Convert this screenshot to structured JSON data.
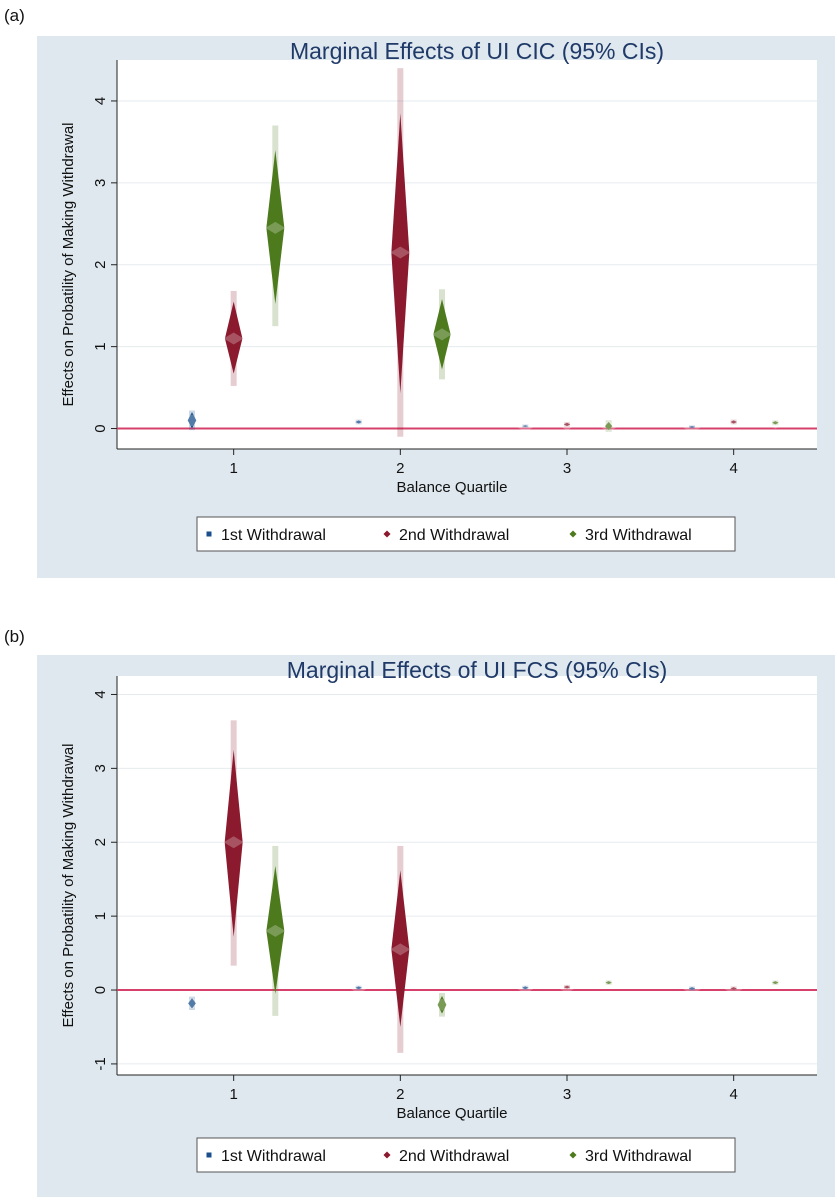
{
  "chart_data": [
    {
      "type": "scatter",
      "panel_label": "(a)",
      "title": "Marginal Effects of UI CIC (95% CIs)",
      "xlabel": "Balance Quartile",
      "ylabel": "Effects on Probatility of Making Withdrawal",
      "xlim": [
        0.3,
        4.5
      ],
      "ylim": [
        -0.25,
        4.5
      ],
      "xticks": [
        1,
        2,
        3,
        4
      ],
      "yticks": [
        0,
        1,
        2,
        3,
        4
      ],
      "reference_line_y": 0,
      "grid": true,
      "legend_position": "bottom",
      "series": [
        {
          "name": "1st Withdrawal",
          "color": "#1a4f8b",
          "points": [
            {
              "x": 0.75,
              "y": 0.1,
              "lo": 0.0,
              "hi": 0.2,
              "lo95": -0.02,
              "hi95": 0.22
            },
            {
              "x": 1.75,
              "y": 0.08,
              "lo": 0.06,
              "hi": 0.1,
              "lo95": 0.05,
              "hi95": 0.11
            },
            {
              "x": 2.75,
              "y": 0.03,
              "lo": 0.02,
              "hi": 0.04,
              "lo95": 0.01,
              "hi95": 0.05
            },
            {
              "x": 3.75,
              "y": 0.02,
              "lo": 0.01,
              "hi": 0.03,
              "lo95": 0.0,
              "hi95": 0.04
            }
          ]
        },
        {
          "name": "2nd Withdrawal",
          "color": "#8b1a2e",
          "points": [
            {
              "x": 1,
              "y": 1.1,
              "lo": 0.67,
              "hi": 1.55,
              "lo95": 0.52,
              "hi95": 1.68
            },
            {
              "x": 2,
              "y": 2.15,
              "lo": 0.43,
              "hi": 3.85,
              "lo95": -0.1,
              "hi95": 4.4
            },
            {
              "x": 3,
              "y": 0.05,
              "lo": 0.03,
              "hi": 0.07,
              "lo95": 0.02,
              "hi95": 0.08
            },
            {
              "x": 4,
              "y": 0.08,
              "lo": 0.06,
              "hi": 0.1,
              "lo95": 0.05,
              "hi95": 0.11
            }
          ]
        },
        {
          "name": "3rd Withdrawal",
          "color": "#4e7a1e",
          "points": [
            {
              "x": 1.25,
              "y": 2.45,
              "lo": 1.52,
              "hi": 3.4,
              "lo95": 1.25,
              "hi95": 3.7
            },
            {
              "x": 2.25,
              "y": 1.15,
              "lo": 0.72,
              "hi": 1.58,
              "lo95": 0.6,
              "hi95": 1.7
            },
            {
              "x": 3.25,
              "y": 0.03,
              "lo": -0.02,
              "hi": 0.08,
              "lo95": -0.04,
              "hi95": 0.1
            },
            {
              "x": 4.25,
              "y": 0.07,
              "lo": 0.05,
              "hi": 0.09,
              "lo95": 0.04,
              "hi95": 0.1
            }
          ]
        }
      ]
    },
    {
      "type": "scatter",
      "panel_label": "(b)",
      "title": "Marginal Effects of UI FCS (95% CIs)",
      "xlabel": "Balance Quartile",
      "ylabel": "Effects on Probatility of Making Withdrawal",
      "xlim": [
        0.3,
        4.5
      ],
      "ylim": [
        -1.15,
        4.25
      ],
      "xticks": [
        1,
        2,
        3,
        4
      ],
      "yticks": [
        -1,
        0,
        1,
        2,
        3,
        4
      ],
      "reference_line_y": 0,
      "grid": true,
      "legend_position": "bottom",
      "series": [
        {
          "name": "1st Withdrawal",
          "color": "#1a4f8b",
          "points": [
            {
              "x": 0.75,
              "y": -0.18,
              "lo": -0.25,
              "hi": -0.11,
              "lo95": -0.27,
              "hi95": -0.09
            },
            {
              "x": 1.75,
              "y": 0.03,
              "lo": 0.01,
              "hi": 0.05,
              "lo95": 0.0,
              "hi95": 0.06
            },
            {
              "x": 2.75,
              "y": 0.03,
              "lo": 0.01,
              "hi": 0.05,
              "lo95": 0.0,
              "hi95": 0.06
            },
            {
              "x": 3.75,
              "y": 0.02,
              "lo": 0.0,
              "hi": 0.04,
              "lo95": -0.01,
              "hi95": 0.05
            }
          ]
        },
        {
          "name": "2nd Withdrawal",
          "color": "#8b1a2e",
          "points": [
            {
              "x": 1,
              "y": 2.0,
              "lo": 0.72,
              "hi": 3.25,
              "lo95": 0.33,
              "hi95": 3.65
            },
            {
              "x": 2,
              "y": 0.55,
              "lo": -0.5,
              "hi": 1.62,
              "lo95": -0.85,
              "hi95": 1.95
            },
            {
              "x": 3,
              "y": 0.04,
              "lo": 0.02,
              "hi": 0.06,
              "lo95": 0.01,
              "hi95": 0.07
            },
            {
              "x": 4,
              "y": 0.02,
              "lo": 0.0,
              "hi": 0.04,
              "lo95": -0.01,
              "hi95": 0.05
            }
          ]
        },
        {
          "name": "3rd Withdrawal",
          "color": "#4e7a1e",
          "points": [
            {
              "x": 1.25,
              "y": 0.8,
              "lo": -0.05,
              "hi": 1.68,
              "lo95": -0.35,
              "hi95": 1.95
            },
            {
              "x": 2.25,
              "y": -0.2,
              "lo": -0.32,
              "hi": -0.08,
              "lo95": -0.36,
              "hi95": -0.04
            },
            {
              "x": 3.25,
              "y": 0.1,
              "lo": 0.08,
              "hi": 0.12,
              "lo95": 0.07,
              "hi95": 0.13
            },
            {
              "x": 4.25,
              "y": 0.1,
              "lo": 0.08,
              "hi": 0.12,
              "lo95": 0.07,
              "hi95": 0.13
            }
          ]
        }
      ]
    }
  ]
}
